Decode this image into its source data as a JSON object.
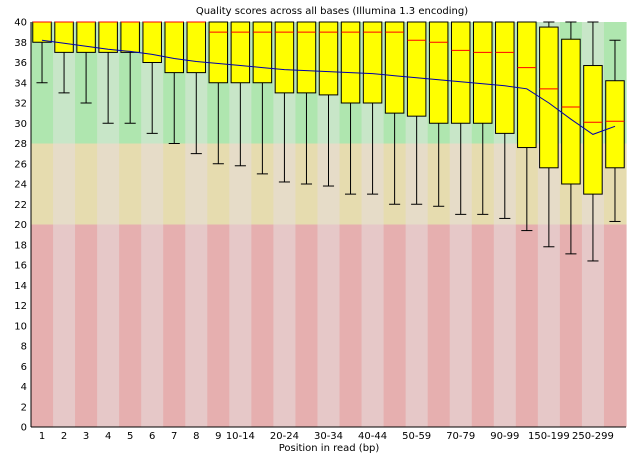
{
  "chart_data": {
    "type": "box",
    "title": "Quality scores across all bases (Illumina 1.3 encoding)",
    "xlabel": "Position in read (bp)",
    "ylabel": "",
    "ylim": [
      0,
      40
    ],
    "yticks": [
      0,
      2,
      4,
      6,
      8,
      10,
      12,
      14,
      16,
      18,
      20,
      22,
      24,
      26,
      28,
      30,
      32,
      34,
      36,
      38,
      40
    ],
    "zones": [
      {
        "name": "good",
        "from": 28,
        "to": 40,
        "colors": [
          "#afe6af",
          "#c8e6c8"
        ]
      },
      {
        "name": "reasonable",
        "from": 20,
        "to": 28,
        "colors": [
          "#e6dcaf",
          "#e6dcc8"
        ]
      },
      {
        "name": "poor",
        "from": 0,
        "to": 20,
        "colors": [
          "#e6afaf",
          "#e6c8c8"
        ]
      }
    ],
    "colors": {
      "box": "#ffff00",
      "median": "#ff0000",
      "mean_line": "#0000aa",
      "whisker": "#000000"
    },
    "categories": [
      "1",
      "2",
      "3",
      "4",
      "5",
      "6",
      "7",
      "8",
      "9",
      "10-14",
      "15-19",
      "20-24",
      "25-29",
      "30-34",
      "35-39",
      "40-44",
      "45-49",
      "50-59",
      "60-69",
      "70-79",
      "80-89",
      "90-99",
      "100-124",
      "150-199",
      "200-249",
      "250-299",
      "300-301"
    ],
    "tick_labels": [
      "1",
      "2",
      "3",
      "4",
      "5",
      "6",
      "7",
      "8",
      "9",
      "10-14",
      "",
      "20-24",
      "",
      "30-34",
      "",
      "40-44",
      "",
      "50-59",
      "",
      "70-79",
      "",
      "90-99",
      "",
      "150-199",
      "",
      "250-299",
      ""
    ],
    "series": [
      {
        "name": "",
        "type": "box",
        "lower_whisker": [
          34.0,
          33.0,
          32.0,
          30.0,
          30.0,
          29.0,
          28.0,
          27.0,
          26.0,
          25.8,
          25.0,
          24.2,
          24.0,
          23.8,
          23.0,
          23.0,
          22.0,
          22.0,
          21.8,
          21.0,
          21.0,
          20.6,
          19.4,
          17.8,
          17.1,
          16.4,
          20.3
        ],
        "q1": [
          38.0,
          37.0,
          37.0,
          37.0,
          37.0,
          36.0,
          35.0,
          35.0,
          34.0,
          34.0,
          34.0,
          33.0,
          33.0,
          32.8,
          32.0,
          32.0,
          31.0,
          30.7,
          30.0,
          30.0,
          30.0,
          29.0,
          27.6,
          25.6,
          24.0,
          23.0,
          25.6
        ],
        "median": [
          40.0,
          40.0,
          40.0,
          40.0,
          40.0,
          40.0,
          40.0,
          40.0,
          39.0,
          39.0,
          39.0,
          39.0,
          39.0,
          39.0,
          39.0,
          39.0,
          39.0,
          38.2,
          38.0,
          37.2,
          37.0,
          37.0,
          35.5,
          33.4,
          31.6,
          30.1,
          30.2
        ],
        "q3": [
          40.0,
          40.0,
          40.0,
          40.0,
          40.0,
          40.0,
          40.0,
          40.0,
          40.0,
          40.0,
          40.0,
          40.0,
          40.0,
          40.0,
          40.0,
          40.0,
          40.0,
          40.0,
          40.0,
          40.0,
          40.0,
          40.0,
          40.0,
          39.5,
          38.3,
          35.7,
          34.2
        ],
        "upper_whisker": [
          40.0,
          40.0,
          40.0,
          40.0,
          40.0,
          40.0,
          40.0,
          40.0,
          40.0,
          40.0,
          40.0,
          40.0,
          40.0,
          40.0,
          40.0,
          40.0,
          40.0,
          40.0,
          40.0,
          40.0,
          40.0,
          40.0,
          40.0,
          40.0,
          40.0,
          40.0,
          38.2
        ]
      },
      {
        "name": "",
        "type": "line",
        "values": [
          38.2,
          37.9,
          37.6,
          37.3,
          37.1,
          36.8,
          36.4,
          36.1,
          35.9,
          35.7,
          35.5,
          35.3,
          35.2,
          35.1,
          35.0,
          34.9,
          34.7,
          34.5,
          34.3,
          34.1,
          33.9,
          33.7,
          33.4,
          32.0,
          30.4,
          28.9,
          29.7
        ]
      }
    ]
  }
}
